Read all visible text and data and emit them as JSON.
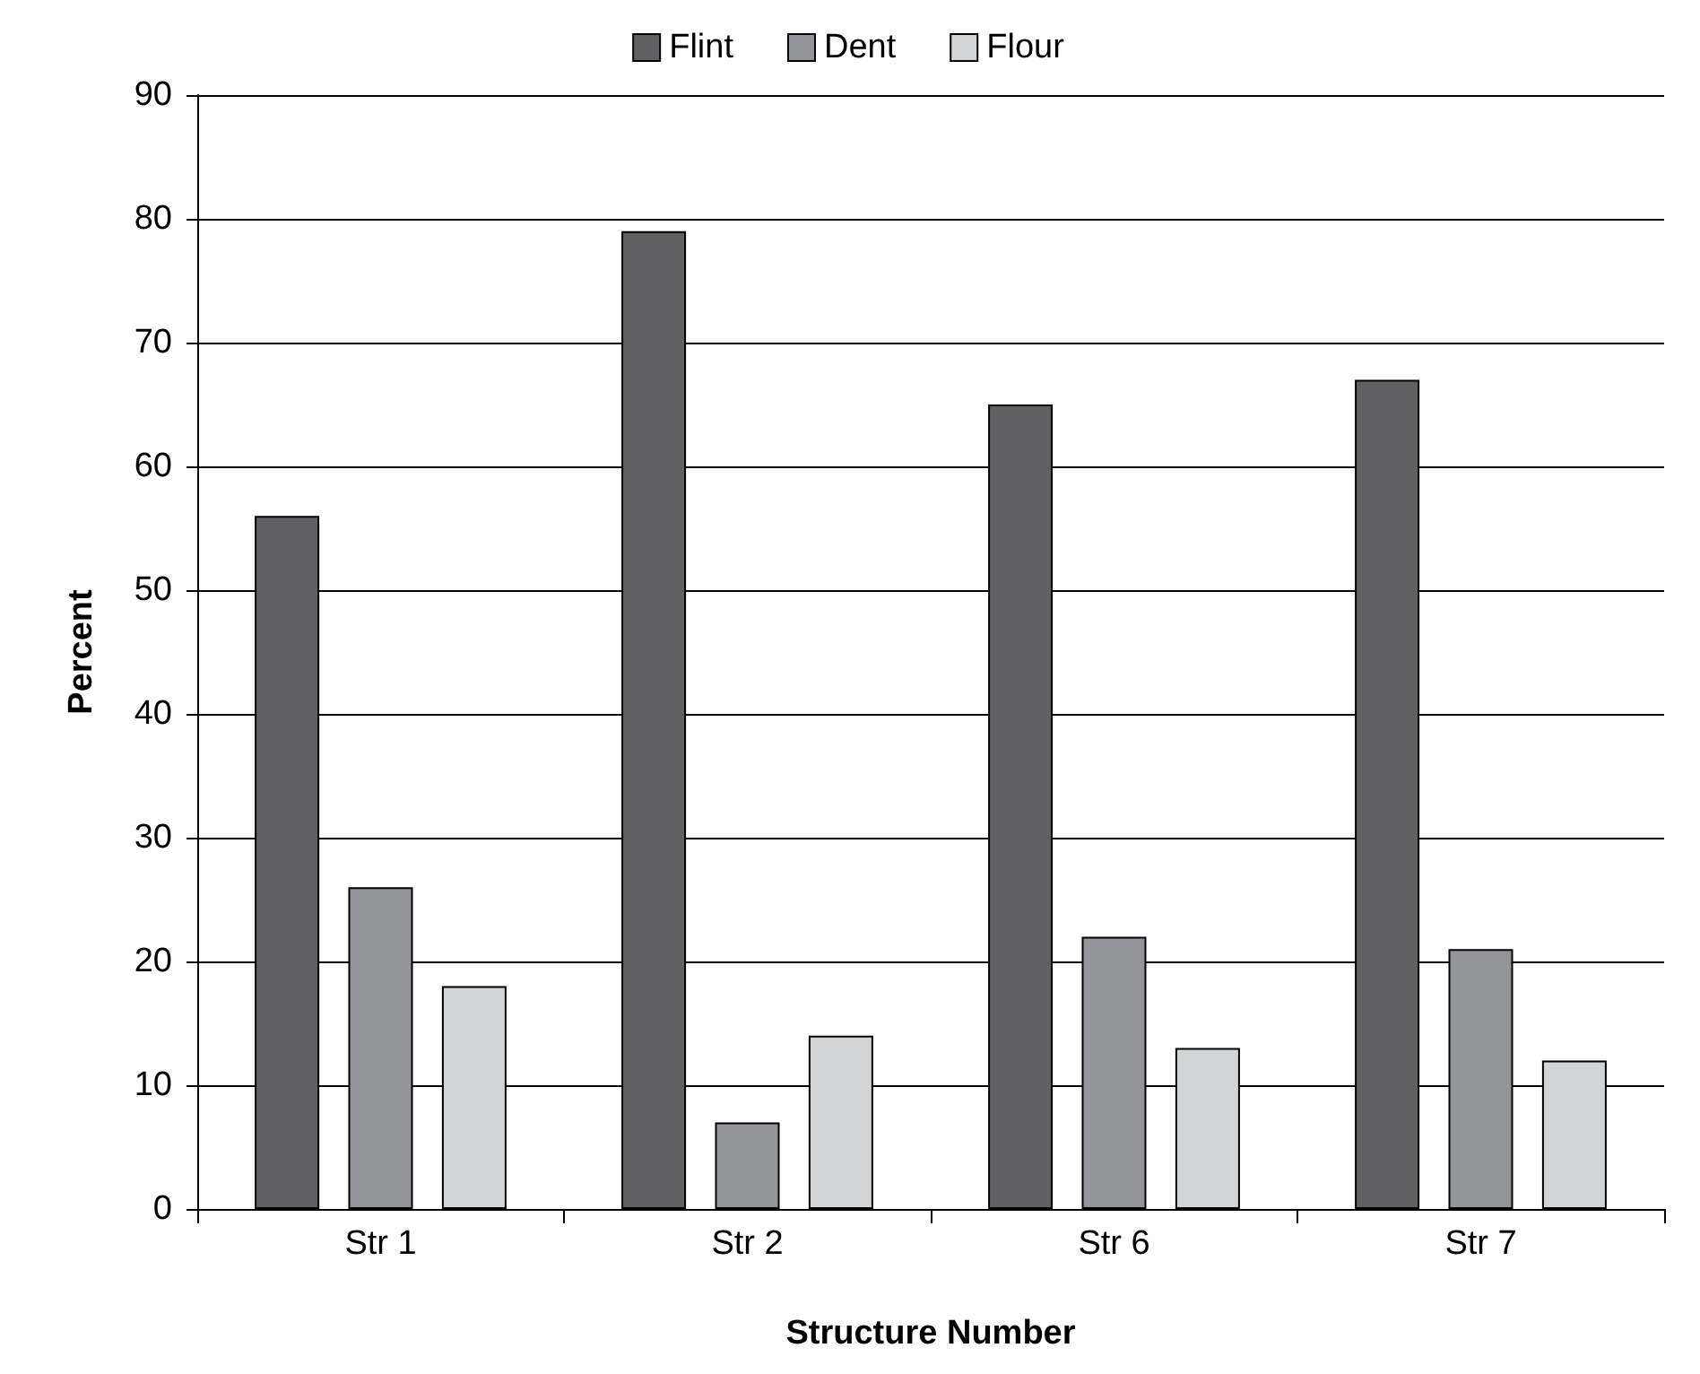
{
  "chart_data": {
    "type": "bar",
    "xlabel": "Structure Number",
    "ylabel": "Percent",
    "categories": [
      "Str 1",
      "Str 2",
      "Str 6",
      "Str 7"
    ],
    "series": [
      {
        "name": "Flint",
        "color": "#616163",
        "values": [
          56,
          79,
          65,
          67
        ]
      },
      {
        "name": "Dent",
        "color": "#949599",
        "values": [
          26,
          7,
          22,
          21
        ]
      },
      {
        "name": "Flour",
        "color": "#d3d4d6",
        "values": [
          18,
          14,
          13,
          12
        ]
      }
    ],
    "ylim": [
      0,
      90
    ],
    "yticks": [
      0,
      10,
      20,
      30,
      40,
      50,
      60,
      70,
      80,
      90
    ],
    "grid": "y",
    "legend": "top"
  }
}
